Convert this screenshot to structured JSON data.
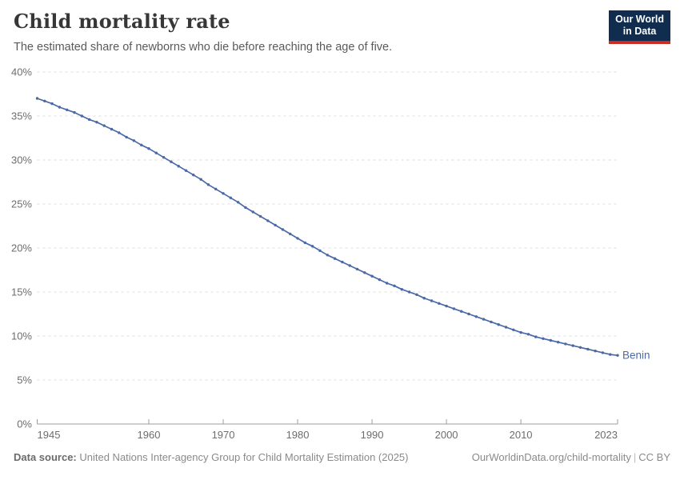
{
  "header": {
    "title": "Child mortality rate",
    "subtitle": "The estimated share of newborns who die before reaching the age of five.",
    "logo": {
      "line1": "Our World",
      "line2": "in Data",
      "bg_color": "#102d50",
      "accent_color": "#cb2d24"
    }
  },
  "chart_data": {
    "type": "line",
    "title": "Child mortality rate",
    "xlabel": "",
    "ylabel": "",
    "xlim": [
      1945,
      2023
    ],
    "ylim": [
      0,
      40
    ],
    "grid": "horizontal-dashed",
    "grid_color": "#dcdcdc",
    "axis_color": "#9e9e9e",
    "axis_text_color": "#6d6d6d",
    "y_ticks": [
      0,
      5,
      10,
      15,
      20,
      25,
      30,
      35,
      40
    ],
    "y_tick_labels": [
      "0%",
      "5%",
      "10%",
      "15%",
      "20%",
      "25%",
      "30%",
      "35%",
      "40%"
    ],
    "x_ticks": [
      1945,
      1960,
      1970,
      1980,
      1990,
      2000,
      2010,
      2023
    ],
    "x_tick_labels": [
      "1945",
      "1960",
      "1970",
      "1980",
      "1990",
      "2000",
      "2010",
      "2023"
    ],
    "legend_position": "end-of-line",
    "series": [
      {
        "name": "Benin",
        "color": "#4a69a5",
        "x": [
          1945,
          1946,
          1947,
          1948,
          1949,
          1950,
          1951,
          1952,
          1953,
          1954,
          1955,
          1956,
          1957,
          1958,
          1959,
          1960,
          1961,
          1962,
          1963,
          1964,
          1965,
          1966,
          1967,
          1968,
          1969,
          1970,
          1971,
          1972,
          1973,
          1974,
          1975,
          1976,
          1977,
          1978,
          1979,
          1980,
          1981,
          1982,
          1983,
          1984,
          1985,
          1986,
          1987,
          1988,
          1989,
          1990,
          1991,
          1992,
          1993,
          1994,
          1995,
          1996,
          1997,
          1998,
          1999,
          2000,
          2001,
          2002,
          2003,
          2004,
          2005,
          2006,
          2007,
          2008,
          2009,
          2010,
          2011,
          2012,
          2013,
          2014,
          2015,
          2016,
          2017,
          2018,
          2019,
          2020,
          2021,
          2022,
          2023
        ],
        "values": [
          37.0,
          36.7,
          36.4,
          36.0,
          35.7,
          35.4,
          35.0,
          34.6,
          34.3,
          33.9,
          33.5,
          33.1,
          32.6,
          32.2,
          31.7,
          31.3,
          30.8,
          30.3,
          29.8,
          29.3,
          28.8,
          28.3,
          27.8,
          27.2,
          26.7,
          26.2,
          25.7,
          25.2,
          24.6,
          24.1,
          23.6,
          23.1,
          22.6,
          22.1,
          21.6,
          21.1,
          20.6,
          20.2,
          19.7,
          19.2,
          18.8,
          18.4,
          18.0,
          17.6,
          17.2,
          16.8,
          16.4,
          16.0,
          15.7,
          15.3,
          15.0,
          14.7,
          14.3,
          14.0,
          13.7,
          13.4,
          13.1,
          12.8,
          12.5,
          12.2,
          11.9,
          11.6,
          11.3,
          11.0,
          10.7,
          10.4,
          10.2,
          9.9,
          9.7,
          9.5,
          9.3,
          9.1,
          8.9,
          8.7,
          8.5,
          8.3,
          8.1,
          7.9,
          7.8
        ]
      }
    ]
  },
  "footer": {
    "datasource_label": "Data source:",
    "datasource_text": " United Nations Inter-agency Group for Child Mortality Estimation (2025)",
    "link_text": "OurWorldinData.org/child-mortality",
    "separator": "|",
    "license_text": "CC BY"
  }
}
